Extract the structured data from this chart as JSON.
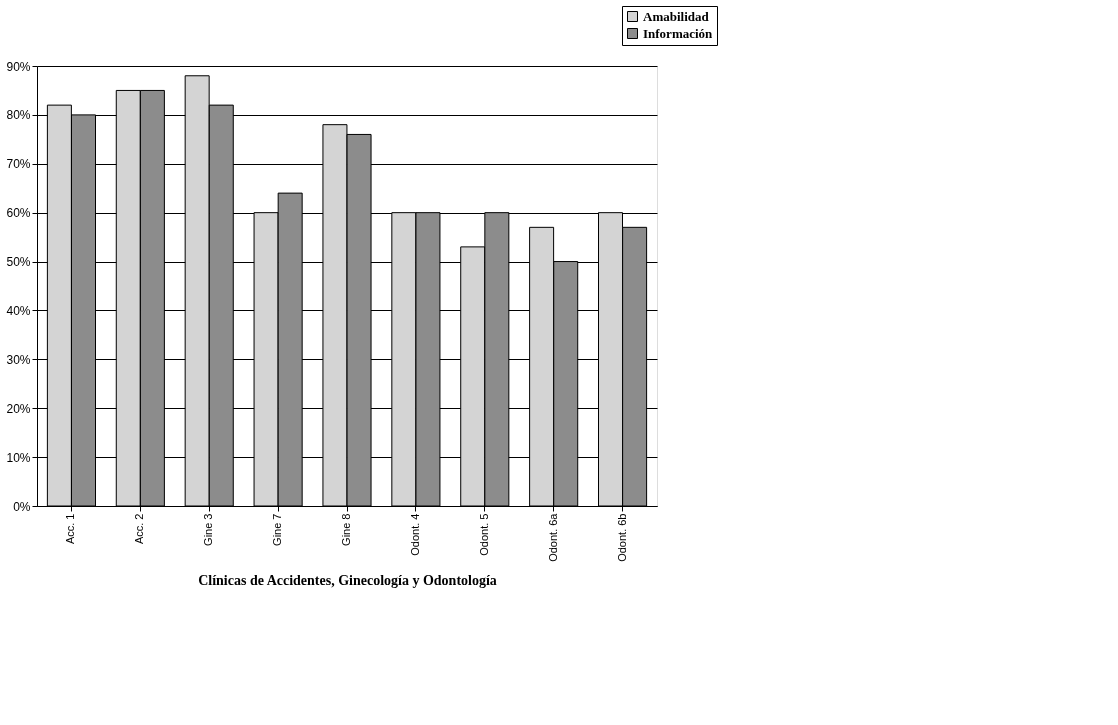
{
  "chart_data": {
    "type": "bar",
    "xlabel": "Clínicas de Accidentes, Ginecología y Odontología",
    "categories": [
      "Acc. 1",
      "Acc. 2",
      "Gine 3",
      "Gine 7",
      "Gine 8",
      "Odont. 4",
      "Odont. 5",
      "Odont. 6a",
      "Odont. 6b"
    ],
    "series": [
      {
        "name": "Amabilidad",
        "color": "#d4d4d4",
        "values": [
          82,
          85,
          88,
          60,
          78,
          60,
          53,
          57,
          60
        ]
      },
      {
        "name": "Información",
        "color": "#8c8c8c",
        "values": [
          80,
          85,
          82,
          64,
          76,
          60,
          60,
          50,
          57
        ]
      }
    ],
    "ylim": [
      0,
      90
    ],
    "yticks": [
      {
        "value": 0,
        "label": "0%"
      },
      {
        "value": 10,
        "label": "10%"
      },
      {
        "value": 20,
        "label": "20%"
      },
      {
        "value": 30,
        "label": "30%"
      },
      {
        "value": 40,
        "label": "40%"
      },
      {
        "value": 50,
        "label": "50%"
      },
      {
        "value": 60,
        "label": "60%"
      },
      {
        "value": 70,
        "label": "70%"
      },
      {
        "value": 80,
        "label": "80%"
      },
      {
        "value": 90,
        "label": "90%"
      }
    ],
    "grid": "y",
    "legend": "top right"
  }
}
